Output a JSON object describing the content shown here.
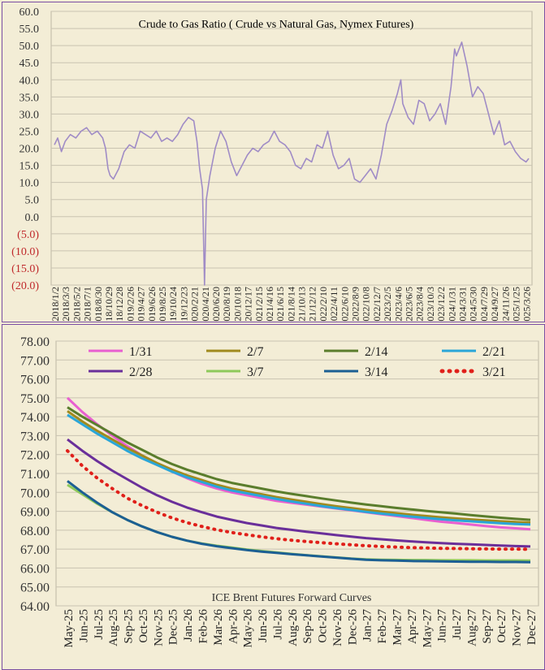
{
  "chart_data": [
    {
      "type": "line",
      "title": "Crude to Gas Ratio ( Crude vs Natural Gas, Nymex Futures)",
      "yticks": [
        "60.0",
        "55.0",
        "50.0",
        "45.0",
        "40.0",
        "35.0",
        "30.0",
        "25.0",
        "20.0",
        "15.0",
        "10.0",
        "5.0",
        "0.0",
        "(5.0)",
        "(10.0)",
        "(15.0)",
        "(20.0)"
      ],
      "ylim": [
        -20,
        60
      ],
      "xticks": [
        "2018/1/2",
        "2018/3/3",
        "2018/5/2",
        "2018/7/1",
        "2018/8/30",
        "2018/10/29",
        "2018/12/28",
        "2019/2/26",
        "2019/4/27",
        "2019/6/26",
        "2019/8/25",
        "2019/10/24",
        "2019/12/23",
        "2020/2/21",
        "2020/4/21",
        "2020/6/20",
        "2020/8/19",
        "2020/10/18",
        "2020/12/17",
        "2021/2/15",
        "2021/4/16",
        "2021/6/15",
        "2021/8/14",
        "2021/10/13",
        "2021/12/12",
        "2022/2/10",
        "2022/4/11",
        "2022/6/10",
        "2022/8/9",
        "2022/10/8",
        "2022/12/7",
        "2023/2/5",
        "2023/4/6",
        "2023/6/5",
        "2023/8/4",
        "2023/10/3",
        "2023/12/2",
        "2024/1/31",
        "2024/3/31",
        "2024/5/30",
        "2024/7/29",
        "2024/9/27",
        "2024/11/26",
        "2025/1/25",
        "2025/3/26"
      ],
      "series": [
        {
          "color": "#a08cc6",
          "points": [
            {
              "x": "2018/1/2",
              "y": 21
            },
            {
              "x": "2018/1/20",
              "y": 23
            },
            {
              "x": "2018/2/10",
              "y": 19
            },
            {
              "x": "2018/3/3",
              "y": 22
            },
            {
              "x": "2018/4/1",
              "y": 24
            },
            {
              "x": "2018/5/2",
              "y": 23
            },
            {
              "x": "2018/6/1",
              "y": 25
            },
            {
              "x": "2018/7/1",
              "y": 26
            },
            {
              "x": "2018/7/30",
              "y": 24
            },
            {
              "x": "2018/8/30",
              "y": 25
            },
            {
              "x": "2018/9/29",
              "y": 23
            },
            {
              "x": "2018/10/15",
              "y": 20
            },
            {
              "x": "2018/10/29",
              "y": 14
            },
            {
              "x": "2018/11/10",
              "y": 12
            },
            {
              "x": "2018/11/28",
              "y": 11
            },
            {
              "x": "2018/12/28",
              "y": 14
            },
            {
              "x": "2019/1/27",
              "y": 19
            },
            {
              "x": "2019/2/26",
              "y": 21
            },
            {
              "x": "2019/3/28",
              "y": 20
            },
            {
              "x": "2019/4/27",
              "y": 25
            },
            {
              "x": "2019/5/27",
              "y": 24
            },
            {
              "x": "2019/6/26",
              "y": 23
            },
            {
              "x": "2019/7/26",
              "y": 25
            },
            {
              "x": "2019/8/25",
              "y": 22
            },
            {
              "x": "2019/9/24",
              "y": 23
            },
            {
              "x": "2019/10/24",
              "y": 22
            },
            {
              "x": "2019/11/23",
              "y": 24
            },
            {
              "x": "2019/12/23",
              "y": 27
            },
            {
              "x": "2020/1/22",
              "y": 29
            },
            {
              "x": "2020/2/21",
              "y": 28
            },
            {
              "x": "2020/3/10",
              "y": 22
            },
            {
              "x": "2020/3/25",
              "y": 14
            },
            {
              "x": "2020/4/10",
              "y": 8
            },
            {
              "x": "2020/4/21",
              "y": -20
            },
            {
              "x": "2020/5/1",
              "y": 5
            },
            {
              "x": "2020/5/21",
              "y": 12
            },
            {
              "x": "2020/6/20",
              "y": 20
            },
            {
              "x": "2020/7/20",
              "y": 25
            },
            {
              "x": "2020/8/19",
              "y": 22
            },
            {
              "x": "2020/9/18",
              "y": 16
            },
            {
              "x": "2020/10/18",
              "y": 12
            },
            {
              "x": "2020/11/17",
              "y": 15
            },
            {
              "x": "2020/12/17",
              "y": 18
            },
            {
              "x": "2021/1/16",
              "y": 20
            },
            {
              "x": "2021/2/15",
              "y": 19
            },
            {
              "x": "2021/3/17",
              "y": 21
            },
            {
              "x": "2021/4/16",
              "y": 22
            },
            {
              "x": "2021/5/16",
              "y": 25
            },
            {
              "x": "2021/6/15",
              "y": 22
            },
            {
              "x": "2021/7/15",
              "y": 21
            },
            {
              "x": "2021/8/14",
              "y": 19
            },
            {
              "x": "2021/9/13",
              "y": 15
            },
            {
              "x": "2021/10/13",
              "y": 14
            },
            {
              "x": "2021/11/12",
              "y": 17
            },
            {
              "x": "2021/12/12",
              "y": 16
            },
            {
              "x": "2022/1/11",
              "y": 21
            },
            {
              "x": "2022/2/10",
              "y": 20
            },
            {
              "x": "2022/3/12",
              "y": 25
            },
            {
              "x": "2022/4/11",
              "y": 18
            },
            {
              "x": "2022/5/11",
              "y": 14
            },
            {
              "x": "2022/6/10",
              "y": 15
            },
            {
              "x": "2022/7/10",
              "y": 17
            },
            {
              "x": "2022/8/9",
              "y": 11
            },
            {
              "x": "2022/9/8",
              "y": 10
            },
            {
              "x": "2022/10/8",
              "y": 12
            },
            {
              "x": "2022/11/7",
              "y": 14
            },
            {
              "x": "2022/12/7",
              "y": 11
            },
            {
              "x": "2023/1/6",
              "y": 18
            },
            {
              "x": "2023/2/5",
              "y": 27
            },
            {
              "x": "2023/3/7",
              "y": 31
            },
            {
              "x": "2023/4/6",
              "y": 36
            },
            {
              "x": "2023/4/25",
              "y": 40
            },
            {
              "x": "2023/5/6",
              "y": 33
            },
            {
              "x": "2023/6/5",
              "y": 29
            },
            {
              "x": "2023/7/5",
              "y": 27
            },
            {
              "x": "2023/8/4",
              "y": 34
            },
            {
              "x": "2023/9/3",
              "y": 33
            },
            {
              "x": "2023/10/3",
              "y": 28
            },
            {
              "x": "2023/11/2",
              "y": 30
            },
            {
              "x": "2023/12/2",
              "y": 33
            },
            {
              "x": "2024/1/1",
              "y": 27
            },
            {
              "x": "2024/1/31",
              "y": 38
            },
            {
              "x": "2024/2/20",
              "y": 49
            },
            {
              "x": "2024/3/1",
              "y": 47
            },
            {
              "x": "2024/3/31",
              "y": 51
            },
            {
              "x": "2024/4/30",
              "y": 44
            },
            {
              "x": "2024/5/30",
              "y": 35
            },
            {
              "x": "2024/6/29",
              "y": 38
            },
            {
              "x": "2024/7/29",
              "y": 36
            },
            {
              "x": "2024/8/28",
              "y": 30
            },
            {
              "x": "2024/9/27",
              "y": 24
            },
            {
              "x": "2024/10/27",
              "y": 28
            },
            {
              "x": "2024/11/26",
              "y": 21
            },
            {
              "x": "2024/12/26",
              "y": 22
            },
            {
              "x": "2025/1/25",
              "y": 19
            },
            {
              "x": "2025/2/24",
              "y": 17
            },
            {
              "x": "2025/3/26",
              "y": 16
            },
            {
              "x": "2025/4/10",
              "y": 17
            }
          ]
        }
      ]
    },
    {
      "type": "line",
      "title": "ICE Brent Futures Forward Curves",
      "ylim": [
        64,
        78
      ],
      "yticks": [
        "78.00",
        "77.00",
        "76.00",
        "75.00",
        "74.00",
        "73.00",
        "72.00",
        "71.00",
        "70.00",
        "69.00",
        "68.00",
        "67.00",
        "66.00",
        "65.00",
        "64.00"
      ],
      "categories": [
        "May-25",
        "Jun-25",
        "Jul-25",
        "Aug-25",
        "Sep-25",
        "Oct-25",
        "Nov-25",
        "Dec-25",
        "Jan-26",
        "Feb-26",
        "Mar-26",
        "Apr-26",
        "May-26",
        "Jun-26",
        "Jul-26",
        "Aug-26",
        "Sep-26",
        "Oct-26",
        "Nov-26",
        "Dec-26",
        "Jan-27",
        "Feb-27",
        "Mar-27",
        "Apr-27",
        "May-27",
        "Jun-27",
        "Jul-27",
        "Aug-27",
        "Sep-27",
        "Oct-27",
        "Nov-27",
        "Dec-27"
      ],
      "series": [
        {
          "name": "1/31",
          "color": "#e85fd0",
          "style": "solid",
          "values": [
            75.0,
            74.25,
            73.6,
            73.0,
            72.45,
            71.95,
            71.5,
            71.1,
            70.75,
            70.45,
            70.2,
            70.0,
            69.85,
            69.7,
            69.55,
            69.45,
            69.35,
            69.25,
            69.15,
            69.05,
            68.95,
            68.85,
            68.75,
            68.65,
            68.55,
            68.45,
            68.38,
            68.3,
            68.22,
            68.15,
            68.1,
            68.05
          ]
        },
        {
          "name": "2/7",
          "color": "#a08a1e",
          "style": "solid",
          "values": [
            74.3,
            73.75,
            73.25,
            72.8,
            72.35,
            71.95,
            71.55,
            71.2,
            70.9,
            70.65,
            70.4,
            70.2,
            70.05,
            69.9,
            69.75,
            69.62,
            69.5,
            69.38,
            69.27,
            69.17,
            69.07,
            68.98,
            68.9,
            68.82,
            68.75,
            68.68,
            68.62,
            68.57,
            68.52,
            68.47,
            68.43,
            68.4
          ]
        },
        {
          "name": "2/14",
          "color": "#5a7d2c",
          "style": "solid",
          "values": [
            74.5,
            74.0,
            73.55,
            73.1,
            72.65,
            72.25,
            71.85,
            71.5,
            71.2,
            70.95,
            70.7,
            70.5,
            70.35,
            70.2,
            70.05,
            69.92,
            69.8,
            69.68,
            69.57,
            69.46,
            69.36,
            69.27,
            69.18,
            69.1,
            69.02,
            68.95,
            68.88,
            68.8,
            68.73,
            68.66,
            68.6,
            68.55
          ]
        },
        {
          "name": "2/21",
          "color": "#2aa6d8",
          "style": "solid",
          "values": [
            74.1,
            73.6,
            73.1,
            72.65,
            72.2,
            71.8,
            71.45,
            71.1,
            70.8,
            70.55,
            70.3,
            70.1,
            69.95,
            69.8,
            69.65,
            69.52,
            69.4,
            69.28,
            69.17,
            69.07,
            68.97,
            68.88,
            68.8,
            68.72,
            68.65,
            68.58,
            68.52,
            68.47,
            68.42,
            68.37,
            68.33,
            68.3
          ]
        },
        {
          "name": "2/28",
          "color": "#6a2f9a",
          "style": "solid",
          "values": [
            72.8,
            72.2,
            71.65,
            71.15,
            70.7,
            70.25,
            69.85,
            69.5,
            69.2,
            68.95,
            68.72,
            68.55,
            68.38,
            68.25,
            68.12,
            68.02,
            67.92,
            67.83,
            67.74,
            67.66,
            67.58,
            67.52,
            67.46,
            67.41,
            67.36,
            67.32,
            67.28,
            67.25,
            67.22,
            67.19,
            67.16,
            67.14
          ]
        },
        {
          "name": "3/7",
          "color": "#8ec95a",
          "style": "solid",
          "values": [
            70.4,
            69.9,
            69.4,
            68.95,
            68.55,
            68.2,
            67.9,
            67.65,
            67.45,
            67.3,
            67.18,
            67.08,
            66.98,
            66.9,
            66.82,
            66.75,
            66.68,
            66.62,
            66.56,
            66.5,
            66.46,
            66.44,
            66.43,
            66.42,
            66.42,
            66.41,
            66.41,
            66.41,
            66.4,
            66.4,
            66.4,
            66.39
          ]
        },
        {
          "name": "3/14",
          "color": "#1c5f93",
          "style": "solid",
          "values": [
            70.6,
            70.0,
            69.45,
            68.95,
            68.55,
            68.2,
            67.9,
            67.65,
            67.45,
            67.28,
            67.15,
            67.05,
            66.95,
            66.87,
            66.8,
            66.73,
            66.67,
            66.61,
            66.55,
            66.49,
            66.44,
            66.41,
            66.39,
            66.37,
            66.36,
            66.35,
            66.34,
            66.33,
            66.33,
            66.32,
            66.32,
            66.31
          ]
        },
        {
          "name": "3/21",
          "color": "#e0201a",
          "style": "dotted",
          "values": [
            72.2,
            71.4,
            70.75,
            70.2,
            69.7,
            69.3,
            68.95,
            68.65,
            68.4,
            68.2,
            68.02,
            67.88,
            67.76,
            67.65,
            67.55,
            67.47,
            67.4,
            67.34,
            67.28,
            67.23,
            67.18,
            67.14,
            67.11,
            67.08,
            67.06,
            67.04,
            67.03,
            67.02,
            67.01,
            67.0,
            67.0,
            66.99
          ]
        }
      ]
    }
  ]
}
